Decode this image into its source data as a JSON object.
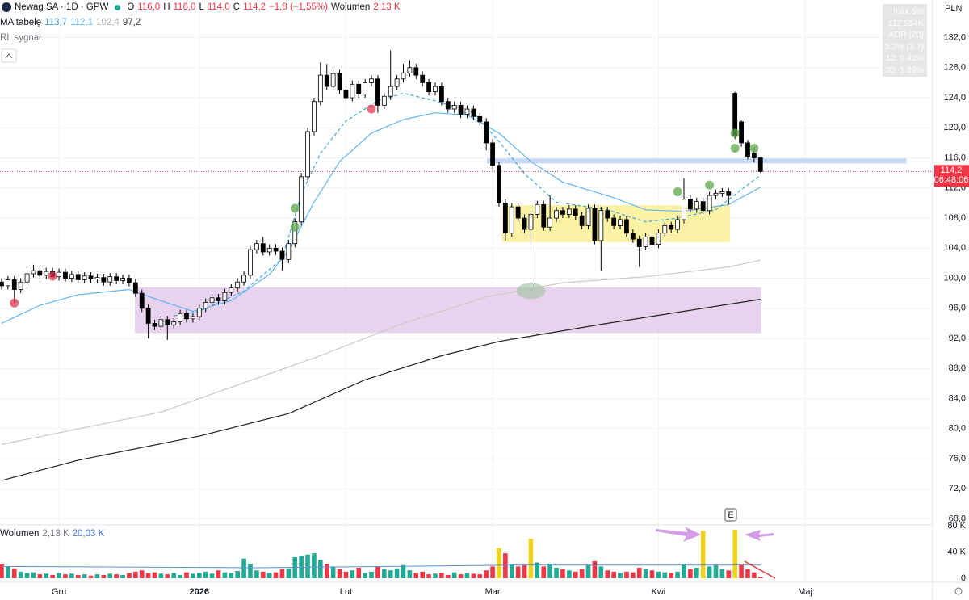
{
  "header": {
    "symbol": "Newag SA · 1D · GPW",
    "ohlc": [
      {
        "k": "O",
        "v": "116,0"
      },
      {
        "k": "H",
        "v": "116,0"
      },
      {
        "k": "L",
        "v": "114,0"
      },
      {
        "k": "C",
        "v": "114,2"
      }
    ],
    "change": "−1,8 (−1,55%)",
    "volume_label": "Wolumen",
    "volume_value": "2,13 K",
    "ma_label": "MA tabelę",
    "ma_values": [
      "113,7",
      "112,1",
      "102,4",
      "97,2"
    ],
    "rl_label": "RL sygnał",
    "vol_pane_label": "Wolumen",
    "vol_pane_values": [
      "2,13 K",
      "20,03 K"
    ],
    "stats": [
      "max 5%",
      "117.554K",
      "ADR (20)",
      "3.2% (3.7)",
      "10: 0.42%",
      "20: 1.89%"
    ],
    "currency": "PLN",
    "earnings": "E"
  },
  "chart_data": {
    "type": "candlestick",
    "grid": true,
    "xlim": [
      -0.25,
      146
    ],
    "xticks": [
      {
        "value": 9,
        "label": "Gru"
      },
      {
        "value": 31,
        "label": "2026"
      },
      {
        "value": 54,
        "label": "Lut"
      },
      {
        "value": 77,
        "label": "Mar"
      },
      {
        "value": 103,
        "label": "Kwi"
      },
      {
        "value": 126,
        "label": "Maj"
      }
    ],
    "ylim": [
      67.2,
      137
    ],
    "yticks": [
      {
        "value": 68,
        "label": "68,0"
      },
      {
        "value": 72,
        "label": "72,0"
      },
      {
        "value": 76,
        "label": "76,0"
      },
      {
        "value": 80,
        "label": "80,0"
      },
      {
        "value": 84,
        "label": "84,0"
      },
      {
        "value": 88,
        "label": "88,0"
      },
      {
        "value": 92,
        "label": "92,0"
      },
      {
        "value": 96,
        "label": "96,0"
      },
      {
        "value": 100,
        "label": "100,0"
      },
      {
        "value": 104,
        "label": "104,0"
      },
      {
        "value": 108,
        "label": "108,0"
      },
      {
        "value": 112,
        "label": "112,0"
      },
      {
        "value": 116,
        "label": "116,0"
      },
      {
        "value": 120,
        "label": "120,0"
      },
      {
        "value": 124,
        "label": "124,0"
      },
      {
        "value": 128,
        "label": "128,0"
      },
      {
        "value": 132,
        "label": "132,0"
      }
    ],
    "up_color": "#ffffff",
    "down_color": "#000000",
    "open": [
      99.5,
      99.0,
      99.8,
      98.5,
      99.5,
      100.6,
      101.0,
      100.4,
      100.9,
      100.2,
      100.8,
      100.0,
      100.5,
      99.8,
      100.3,
      99.9,
      100.1,
      99.5,
      100.2,
      99.7,
      100.0,
      99.4,
      98.0,
      96.0,
      94.0,
      93.6,
      94.5,
      93.8,
      94.2,
      95.3,
      94.6,
      94.9,
      96.0,
      96.8,
      97.4,
      97.0,
      98.1,
      98.7,
      99.5,
      100.4,
      103.8,
      104.6,
      103.5,
      104.0,
      103.6,
      102.5,
      104.6,
      107.5,
      113.5,
      119.5,
      123.5,
      127.0,
      125.5,
      127.2,
      125.0,
      124.0,
      125.8,
      124.5,
      126.0,
      126.5,
      123.0,
      124.2,
      125.5,
      126.5,
      127.3,
      128.0,
      127.0,
      126.0,
      124.8,
      125.5,
      123.5,
      122.5,
      123.0,
      121.8,
      122.5,
      121.5,
      120.8,
      118.0,
      115.0,
      110.0,
      106.0,
      109.5,
      108.0,
      106.5,
      108.5,
      109.8,
      106.8,
      108.0,
      109.0,
      108.5,
      109.2,
      108.3,
      107.0,
      109.3,
      105.0,
      109.0,
      108.0,
      107.0,
      107.8,
      106.0,
      105.2,
      104.2,
      105.5,
      104.5,
      106.0,
      107.0,
      106.5,
      107.8,
      110.5,
      109.2,
      110.2,
      109.0,
      111.0,
      111.3,
      111.5,
      124.6,
      120.8,
      118.0,
      116.6,
      116.0
    ],
    "high": [
      100.0,
      100.3,
      100.3,
      100.0,
      101.1,
      101.8,
      101.5,
      101.4,
      101.4,
      101.3,
      101.3,
      101.0,
      101.0,
      100.8,
      100.8,
      100.6,
      100.6,
      100.7,
      100.7,
      100.5,
      100.5,
      99.9,
      98.5,
      96.5,
      94.5,
      95.0,
      95.0,
      94.7,
      95.8,
      95.8,
      95.4,
      96.5,
      97.3,
      97.9,
      97.9,
      98.6,
      99.2,
      100.0,
      100.9,
      104.3,
      105.1,
      105.5,
      104.5,
      104.5,
      104.1,
      105.1,
      108.0,
      114.0,
      120.0,
      124.0,
      128.7,
      128.5,
      127.7,
      127.7,
      125.5,
      126.3,
      126.3,
      126.5,
      127.0,
      127.0,
      124.7,
      130.3,
      127.0,
      128.5,
      129.0,
      128.5,
      127.5,
      126.5,
      126.0,
      126.0,
      124.0,
      123.5,
      123.5,
      123.0,
      123.0,
      122.0,
      121.3,
      118.5,
      115.5,
      110.5,
      110.0,
      110.0,
      108.5,
      109.0,
      110.3,
      110.3,
      111.0,
      109.5,
      109.5,
      109.7,
      109.7,
      108.8,
      109.8,
      109.8,
      109.5,
      109.5,
      108.5,
      108.3,
      108.3,
      106.5,
      105.7,
      106.0,
      106.0,
      106.5,
      107.5,
      107.5,
      108.3,
      113.3,
      111.0,
      110.7,
      110.7,
      111.5,
      111.8,
      112.0,
      112.0,
      124.8,
      121.0,
      118.4,
      117.4,
      116.0
    ],
    "low": [
      98.5,
      98.5,
      96.7,
      98.0,
      99.0,
      100.1,
      99.9,
      99.9,
      99.7,
      99.7,
      99.5,
      99.5,
      99.3,
      99.3,
      99.4,
      99.4,
      99.0,
      99.0,
      99.2,
      99.2,
      98.9,
      97.5,
      95.5,
      92.0,
      93.1,
      93.1,
      91.8,
      93.3,
      93.7,
      94.1,
      94.1,
      94.4,
      95.5,
      96.3,
      96.5,
      96.5,
      97.6,
      98.2,
      99.0,
      99.9,
      103.3,
      103.0,
      103.0,
      103.1,
      101.0,
      102.0,
      104.1,
      107.0,
      113.0,
      119.0,
      123.0,
      125.0,
      125.0,
      124.5,
      123.5,
      123.5,
      124.0,
      124.0,
      125.5,
      122.0,
      122.5,
      123.7,
      125.0,
      126.0,
      126.8,
      126.5,
      125.5,
      124.3,
      124.3,
      123.0,
      122.0,
      122.0,
      121.3,
      121.3,
      121.0,
      120.3,
      117.0,
      114.5,
      109.5,
      105.0,
      105.5,
      107.5,
      106.0,
      98.9,
      108.0,
      106.3,
      106.3,
      107.5,
      108.0,
      108.0,
      107.8,
      106.5,
      106.5,
      104.5,
      101.0,
      107.5,
      106.5,
      106.5,
      105.5,
      104.7,
      101.5,
      103.7,
      104.0,
      104.0,
      105.5,
      106.0,
      106.0,
      107.3,
      108.7,
      108.7,
      108.5,
      108.5,
      110.5,
      110.8,
      109.8,
      118.5,
      117.5,
      115.8,
      115.4,
      114.0
    ],
    "close": [
      99.0,
      99.8,
      98.5,
      99.5,
      100.6,
      101.0,
      100.4,
      100.9,
      100.2,
      100.8,
      100.0,
      100.5,
      99.8,
      100.3,
      99.9,
      100.1,
      99.5,
      100.2,
      99.7,
      100.0,
      99.4,
      98.0,
      96.0,
      94.0,
      93.6,
      94.5,
      93.8,
      94.2,
      95.3,
      94.6,
      94.9,
      96.0,
      96.8,
      97.4,
      97.0,
      98.1,
      98.7,
      99.5,
      100.4,
      103.8,
      104.6,
      103.5,
      104.0,
      103.6,
      102.5,
      104.6,
      107.5,
      113.5,
      119.5,
      123.5,
      127.0,
      125.5,
      127.2,
      125.0,
      124.0,
      125.8,
      124.5,
      126.0,
      126.5,
      123.0,
      124.2,
      125.5,
      126.5,
      127.3,
      128.0,
      127.0,
      126.0,
      124.8,
      125.5,
      123.5,
      122.5,
      123.0,
      121.8,
      122.5,
      121.5,
      120.8,
      118.0,
      115.0,
      110.0,
      106.0,
      109.5,
      108.0,
      106.5,
      108.5,
      109.8,
      106.8,
      108.0,
      109.0,
      108.5,
      109.2,
      108.3,
      107.0,
      109.3,
      105.0,
      109.0,
      108.0,
      107.0,
      107.8,
      106.0,
      105.2,
      104.2,
      105.5,
      104.5,
      106.0,
      107.0,
      106.5,
      107.8,
      110.5,
      109.2,
      110.2,
      109.0,
      111.0,
      111.3,
      111.5,
      111.0,
      119.0,
      118.0,
      116.2,
      116.0,
      114.2
    ],
    "moving_averages": [
      {
        "color": "#c9c9c9",
        "dashed": false,
        "x": [
          0,
          25,
          50,
          63,
          76,
          88,
          101,
          114,
          119
        ],
        "values": [
          77.9,
          82.2,
          89.7,
          94.0,
          97.5,
          99.4,
          100.2,
          101.5,
          102.4
        ]
      },
      {
        "color": "#222222",
        "dashed": false,
        "x": [
          0,
          12,
          31,
          45,
          57,
          69,
          78,
          95,
          107,
          119
        ],
        "values": [
          73.1,
          75.8,
          79.0,
          82.0,
          86.5,
          89.7,
          91.6,
          94.0,
          95.6,
          97.2
        ]
      },
      {
        "color": "#64b5f6",
        "dashed": false,
        "x": [
          0,
          6,
          12,
          20,
          25,
          30,
          36,
          42,
          45,
          49,
          53,
          58,
          63,
          68,
          73,
          78,
          83,
          88,
          96,
          101,
          107,
          114,
          119
        ],
        "values": [
          94.0,
          96.4,
          97.8,
          98.5,
          97.0,
          95.6,
          97.0,
          100.5,
          103.7,
          110.1,
          115.5,
          119.3,
          121.1,
          122.0,
          121.7,
          119.3,
          115.5,
          112.8,
          110.7,
          109.1,
          108.9,
          109.8,
          112.1
        ]
      },
      {
        "color": "#3ba6d8",
        "dashed": true,
        "x": [
          27,
          31,
          38,
          44,
          47,
          50,
          54,
          59,
          63,
          68,
          74,
          78,
          82,
          87,
          95,
          101,
          106,
          112,
          116,
          119
        ],
        "values": [
          95.0,
          95.6,
          98.3,
          102.6,
          111.2,
          116.6,
          120.9,
          123.6,
          124.6,
          123.6,
          122.0,
          118.2,
          113.9,
          110.1,
          109.1,
          107.5,
          108.0,
          109.1,
          111.8,
          113.7
        ]
      }
    ],
    "zones": [
      {
        "x": [
          20.9,
          119.1
        ],
        "y": [
          92.7,
          98.8
        ],
        "color": "#e8d3ef"
      },
      {
        "x": [
          78.5,
          114.2
        ],
        "y": [
          104.8,
          109.7
        ],
        "color": "#fbf2a6"
      }
    ],
    "level": {
      "x": [
        76.1,
        141.9
      ],
      "value": 115.6,
      "color": "#c6d8f3"
    },
    "last_price": {
      "value": 114.2,
      "label": "114,2",
      "time": "06:48:06",
      "color": "#f23645"
    },
    "markers": [
      {
        "x": 46,
        "y": 109.3,
        "color": "#5fa84a"
      },
      {
        "x": 46,
        "y": 106.8,
        "color": "#5fa84a"
      },
      {
        "x": 106,
        "y": 111.5,
        "color": "#5fa84a"
      },
      {
        "x": 111,
        "y": 112.4,
        "color": "#5fa84a"
      },
      {
        "x": 115,
        "y": 119.3,
        "color": "#5fa84a"
      },
      {
        "x": 115,
        "y": 117.3,
        "color": "#5fa84a"
      },
      {
        "x": 118,
        "y": 117.3,
        "color": "#5fa84a"
      },
      {
        "x": 2,
        "y": 96.7,
        "color": "#e0384f"
      },
      {
        "x": 8,
        "y": 100.3,
        "color": "#e0384f"
      },
      {
        "x": 58,
        "y": 122.5,
        "color": "#e0384f"
      }
    ],
    "highlight_ellipse": {
      "x": 83,
      "y": 98.3,
      "color": "#a9c4a9"
    },
    "volume": {
      "ylim": [
        0,
        80
      ],
      "yticks": [
        0,
        {
          "value": 40,
          "label": "40 K"
        },
        {
          "value": 80,
          "label": "80 K"
        }
      ],
      "up_color": "#22ab94",
      "down_color": "#f23645",
      "highlight": [
        78,
        83,
        110,
        115
      ],
      "highlight_color": "#f2d31b",
      "values": [
        22,
        18,
        15,
        10,
        8,
        9,
        6,
        7,
        5,
        8,
        6,
        7,
        5,
        6,
        4,
        6,
        5,
        7,
        6,
        5,
        8,
        10,
        12,
        8,
        9,
        7,
        6,
        8,
        5,
        9,
        7,
        8,
        10,
        7,
        12,
        9,
        8,
        11,
        30,
        22,
        12,
        10,
        8,
        9,
        14,
        15,
        32,
        34,
        36,
        38,
        28,
        22,
        18,
        14,
        10,
        12,
        16,
        8,
        10,
        18,
        14,
        12,
        15,
        20,
        12,
        8,
        10,
        6,
        7,
        8,
        5,
        9,
        6,
        8,
        7,
        6,
        12,
        18,
        46,
        38,
        22,
        18,
        20,
        60,
        24,
        18,
        22,
        16,
        14,
        12,
        10,
        14,
        20,
        26,
        18,
        12,
        10,
        8,
        10,
        9,
        16,
        14,
        12,
        10,
        9,
        8,
        10,
        22,
        14,
        16,
        72,
        18,
        20,
        14,
        12,
        74,
        22,
        14,
        9,
        2.13
      ],
      "ma": {
        "color": "#5b8fd6",
        "x": [
          0,
          40,
          80,
          119
        ],
        "values": [
          18,
          16,
          20,
          20.03
        ]
      }
    }
  }
}
